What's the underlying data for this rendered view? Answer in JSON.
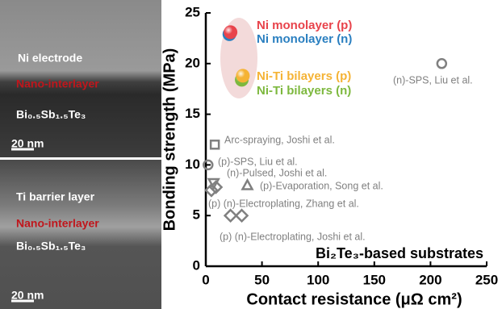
{
  "images": [
    {
      "labels": [
        "Ni electrode",
        "Nano-interlayer",
        "Bi₀.₅Sb₁.₅Te₃"
      ],
      "scale": "20 nm"
    },
    {
      "labels": [
        "Ti barrier layer",
        "Nano-interlayer",
        "Bi₀.₅Sb₁.₅Te₃"
      ],
      "scale": "20 nm"
    }
  ],
  "chart_data": {
    "type": "scatter",
    "xlabel": "Contact resistance (μΩ cm²)",
    "ylabel": "Bonding strength (MPa)",
    "annotation": "Bi₂Te₃-based substrates",
    "xlim": [
      0,
      250
    ],
    "xticks": [
      0,
      50,
      100,
      150,
      200,
      250
    ],
    "ylim": [
      0,
      25
    ],
    "yticks": [
      0,
      5,
      10,
      15,
      20,
      25
    ],
    "series": [
      {
        "name": "Ni monolayer (p)",
        "color": "#e8434b",
        "marker": "ball",
        "x": [
          22
        ],
        "values": [
          23.1
        ]
      },
      {
        "name": "Ni monolayer (n)",
        "color": "#2a7fc0",
        "marker": "ball",
        "x": [
          21
        ],
        "values": [
          22.9
        ]
      },
      {
        "name": "Ni-Ti bilayers (p)",
        "color": "#f5b335",
        "marker": "ball",
        "x": [
          33
        ],
        "values": [
          18.8
        ]
      },
      {
        "name": "Ni-Ti bilayers (n)",
        "color": "#7db83e",
        "marker": "ball",
        "x": [
          32
        ],
        "values": [
          18.4
        ]
      },
      {
        "name": "(n)-SPS, Liu et al.",
        "color": "#808080",
        "marker": "circle",
        "x": [
          210
        ],
        "values": [
          20
        ]
      },
      {
        "name": "Arc-spraying, Joshi et al.",
        "color": "#808080",
        "marker": "square",
        "x": [
          8
        ],
        "values": [
          12
        ]
      },
      {
        "name": "(p)-SPS, Liu et al.",
        "color": "#808080",
        "marker": "circle",
        "x": [
          2
        ],
        "values": [
          10
        ]
      },
      {
        "name": "(n)-Pulsed, Joshi et al.",
        "color": "#808080",
        "marker": "triangle-down",
        "x": [
          7
        ],
        "values": [
          8.2
        ]
      },
      {
        "name": "(p)-Evaporation, Song et al.",
        "color": "#808080",
        "marker": "triangle-up",
        "x": [
          37
        ],
        "values": [
          8
        ]
      },
      {
        "name": "(p) (n)-Electroplating, Zhang et al.",
        "color": "#808080",
        "marker": "diamond",
        "x": [
          5,
          9
        ],
        "values": [
          7.5,
          7.8
        ]
      },
      {
        "name": "(p) (n)-Electroplating, Joshi et al.",
        "color": "#808080",
        "marker": "diamond",
        "x": [
          22,
          32
        ],
        "values": [
          5,
          5
        ]
      }
    ]
  }
}
